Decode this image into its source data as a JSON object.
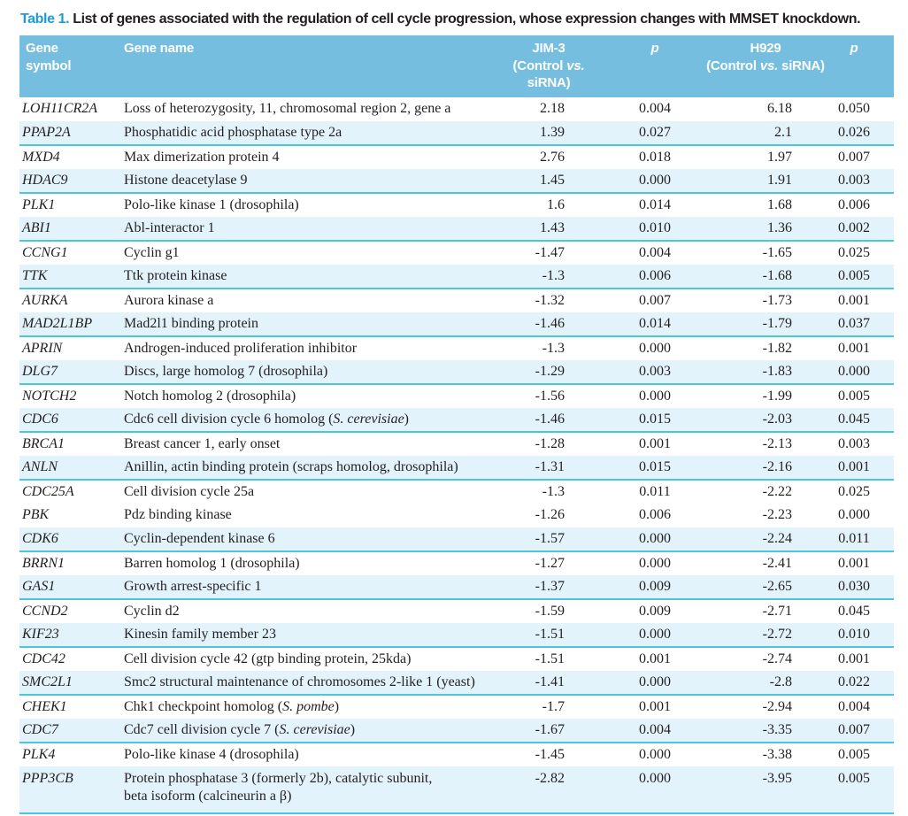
{
  "title": {
    "label": "Table 1.",
    "text": "List of genes associated with the regulation of cell cycle progression, whose expression changes with MMSET knockdown."
  },
  "colors": {
    "accent_blue": "#1e9ad6",
    "header_bg": "#76bedf",
    "row_shade": "#e3f3fb",
    "row_divider": "#4cc5dd",
    "text": "#231f20"
  },
  "header": {
    "gene_symbol_line1": "Gene",
    "gene_symbol_line2": "symbol",
    "gene_name": "Gene name",
    "jim3_label": "JIM-3",
    "h929_label": "H929",
    "control_prefix": "(Control",
    "vs_label": "vs.",
    "sirna_suffix": "siRNA)",
    "p_label": "p"
  },
  "rows": [
    {
      "symbol": "LOH11CR2A",
      "name": [
        {
          "t": "Loss of heterozygosity, 11, chromosomal region 2, gene a"
        }
      ],
      "jim3": "2.18",
      "p1": "0.004",
      "h929": "6.18",
      "p2": "0.050",
      "shaded": false
    },
    {
      "symbol": "PPAP2A",
      "name": [
        {
          "t": "Phosphatidic acid phosphatase type 2a"
        }
      ],
      "jim3": "1.39",
      "p1": "0.027",
      "h929": "2.1",
      "p2": "0.026",
      "shaded": true
    },
    {
      "symbol": "MXD4",
      "name": [
        {
          "t": "Max dimerization protein 4"
        }
      ],
      "jim3": "2.76",
      "p1": "0.018",
      "h929": "1.97",
      "p2": "0.007",
      "shaded": false
    },
    {
      "symbol": "HDAC9",
      "name": [
        {
          "t": "Histone deacetylase 9"
        }
      ],
      "jim3": "1.45",
      "p1": "0.000",
      "h929": "1.91",
      "p2": "0.003",
      "shaded": true
    },
    {
      "symbol": "PLK1",
      "name": [
        {
          "t": "Polo-like kinase 1 (drosophila)"
        }
      ],
      "jim3": "1.6",
      "p1": "0.014",
      "h929": "1.68",
      "p2": "0.006",
      "shaded": false
    },
    {
      "symbol": "ABI1",
      "name": [
        {
          "t": "Abl-interactor 1"
        }
      ],
      "jim3": "1.43",
      "p1": "0.010",
      "h929": "1.36",
      "p2": "0.002",
      "shaded": true
    },
    {
      "symbol": "CCNG1",
      "name": [
        {
          "t": "Cyclin g1"
        }
      ],
      "jim3": "-1.47",
      "p1": "0.004",
      "h929": "-1.65",
      "p2": "0.025",
      "shaded": false
    },
    {
      "symbol": "TTK",
      "name": [
        {
          "t": "Ttk protein kinase"
        }
      ],
      "jim3": "-1.3",
      "p1": "0.006",
      "h929": "-1.68",
      "p2": "0.005",
      "shaded": true
    },
    {
      "symbol": "AURKA",
      "name": [
        {
          "t": "Aurora kinase a"
        }
      ],
      "jim3": "-1.32",
      "p1": "0.007",
      "h929": "-1.73",
      "p2": "0.001",
      "shaded": false
    },
    {
      "symbol": "MAD2L1BP",
      "name": [
        {
          "t": "Mad2l1 binding protein"
        }
      ],
      "jim3": "-1.46",
      "p1": "0.014",
      "h929": "-1.79",
      "p2": "0.037",
      "shaded": true
    },
    {
      "symbol": "APRIN",
      "name": [
        {
          "t": "Androgen-induced proliferation inhibitor"
        }
      ],
      "jim3": "-1.3",
      "p1": "0.000",
      "h929": "-1.82",
      "p2": "0.001",
      "shaded": false
    },
    {
      "symbol": "DLG7",
      "name": [
        {
          "t": "Discs, large homolog 7 (drosophila)"
        }
      ],
      "jim3": "-1.29",
      "p1": "0.003",
      "h929": "-1.83",
      "p2": "0.000",
      "shaded": true
    },
    {
      "symbol": "NOTCH2",
      "name": [
        {
          "t": "Notch homolog 2 (drosophila)"
        }
      ],
      "jim3": "-1.56",
      "p1": "0.000",
      "h929": "-1.99",
      "p2": "0.005",
      "shaded": false
    },
    {
      "symbol": "CDC6",
      "name": [
        {
          "t": "Cdc6 cell division cycle 6 homolog ("
        },
        {
          "t": "S. cerevisiae",
          "i": true
        },
        {
          "t": ")"
        }
      ],
      "jim3": "-1.46",
      "p1": "0.015",
      "h929": "-2.03",
      "p2": "0.045",
      "shaded": true
    },
    {
      "symbol": "BRCA1",
      "name": [
        {
          "t": "Breast cancer 1, early onset"
        }
      ],
      "jim3": "-1.28",
      "p1": "0.001",
      "h929": "-2.13",
      "p2": "0.003",
      "shaded": false
    },
    {
      "symbol": "ANLN",
      "name": [
        {
          "t": "Anillin, actin binding protein (scraps homolog, drosophila)"
        }
      ],
      "jim3": "-1.31",
      "p1": "0.015",
      "h929": "-2.16",
      "p2": "0.001",
      "shaded": true
    },
    {
      "symbol": "CDC25A",
      "name": [
        {
          "t": "Cell division cycle 25a"
        }
      ],
      "jim3": "-1.3",
      "p1": "0.011",
      "h929": "-2.22",
      "p2": "0.025",
      "shaded": false
    },
    {
      "symbol": "PBK",
      "name": [
        {
          "t": "Pdz binding kinase"
        }
      ],
      "jim3": "-1.26",
      "p1": "0.006",
      "h929": "-2.23",
      "p2": "0.000",
      "shaded": false
    },
    {
      "symbol": "CDK6",
      "name": [
        {
          "t": "Cyclin-dependent kinase 6"
        }
      ],
      "jim3": "-1.57",
      "p1": "0.000",
      "h929": "-2.24",
      "p2": "0.011",
      "shaded": true
    },
    {
      "symbol": "BRRN1",
      "name": [
        {
          "t": "Barren homolog 1 (drosophila)"
        }
      ],
      "jim3": "-1.27",
      "p1": "0.000",
      "h929": "-2.41",
      "p2": "0.001",
      "shaded": false
    },
    {
      "symbol": "GAS1",
      "name": [
        {
          "t": "Growth arrest-specific 1"
        }
      ],
      "jim3": "-1.37",
      "p1": "0.009",
      "h929": "-2.65",
      "p2": "0.030",
      "shaded": true
    },
    {
      "symbol": "CCND2",
      "name": [
        {
          "t": "Cyclin d2"
        }
      ],
      "jim3": "-1.59",
      "p1": "0.009",
      "h929": "-2.71",
      "p2": "0.045",
      "shaded": false
    },
    {
      "symbol": "KIF23",
      "name": [
        {
          "t": "Kinesin family member 23"
        }
      ],
      "jim3": "-1.51",
      "p1": "0.000",
      "h929": "-2.72",
      "p2": "0.010",
      "shaded": true
    },
    {
      "symbol": "CDC42",
      "name": [
        {
          "t": "Cell division cycle 42 (gtp binding protein, 25kda)"
        }
      ],
      "jim3": "-1.51",
      "p1": "0.001",
      "h929": "-2.74",
      "p2": "0.001",
      "shaded": false
    },
    {
      "symbol": "SMC2L1",
      "name": [
        {
          "t": "Smc2 structural maintenance of chromosomes 2-like 1 (yeast)"
        }
      ],
      "jim3": "-1.41",
      "p1": "0.000",
      "h929": "-2.8",
      "p2": "0.022",
      "shaded": true
    },
    {
      "symbol": "CHEK1",
      "name": [
        {
          "t": "Chk1 checkpoint homolog ("
        },
        {
          "t": "S. pombe",
          "i": true
        },
        {
          "t": ")"
        }
      ],
      "jim3": "-1.7",
      "p1": "0.001",
      "h929": "-2.94",
      "p2": "0.004",
      "shaded": false
    },
    {
      "symbol": "CDC7",
      "name": [
        {
          "t": "Cdc7 cell division cycle 7 ("
        },
        {
          "t": "S. cerevisiae",
          "i": true
        },
        {
          "t": ")"
        }
      ],
      "jim3": "-1.67",
      "p1": "0.004",
      "h929": "-3.35",
      "p2": "0.007",
      "shaded": true
    },
    {
      "symbol": "PLK4",
      "name": [
        {
          "t": "Polo-like kinase 4 (drosophila)"
        }
      ],
      "jim3": "-1.45",
      "p1": "0.000",
      "h929": "-3.38",
      "p2": "0.005",
      "shaded": false
    },
    {
      "symbol": "PPP3CB",
      "name": [
        {
          "t": "Protein phosphatase 3 (formerly 2b), catalytic subunit,"
        },
        {
          "t": "beta isoform (calcineurin a β)",
          "br": true
        }
      ],
      "jim3": "-2.82",
      "p1": "0.000",
      "h929": "-3.95",
      "p2": "0.005",
      "shaded": true
    }
  ]
}
